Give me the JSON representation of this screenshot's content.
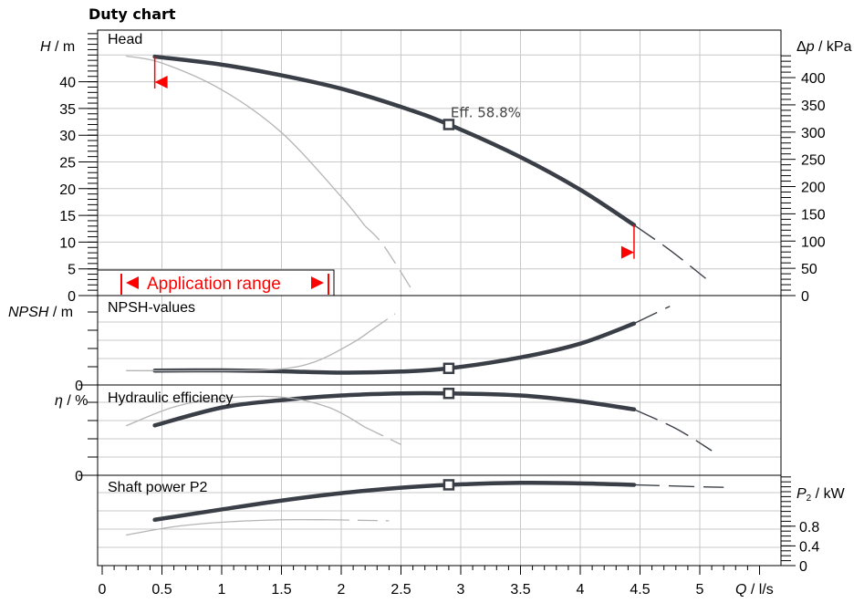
{
  "chart_data": {
    "type": "line",
    "title": "Duty chart",
    "x_axis": {
      "label_var": "Q",
      "label_unit": " / l/s",
      "range": [
        0,
        5.5
      ],
      "ticks": [
        "0",
        "0.5",
        "1",
        "1.5",
        "2",
        "2.5",
        "3",
        "3.5",
        "4",
        "4.5",
        "5"
      ]
    },
    "panels": [
      {
        "name": "Head",
        "left_axis": {
          "label_var": "H",
          "label_unit": " / m",
          "range": [
            0,
            47
          ],
          "ticks": [
            "0",
            "5",
            "10",
            "15",
            "20",
            "25",
            "30",
            "35",
            "40"
          ]
        },
        "right_axis": {
          "label_var": "Δp",
          "label_unit": " / kPa",
          "ticks": [
            "0",
            "50",
            "100",
            "150",
            "200",
            "250",
            "300",
            "350",
            "400"
          ]
        },
        "series": [
          {
            "style": "main",
            "x": [
              0.44,
              1.0,
              1.5,
              2.0,
              2.5,
              2.9,
              3.5,
              4.0,
              4.45
            ],
            "y": [
              44.7,
              43.2,
              41.2,
              38.7,
              35.3,
              32.0,
              25.9,
              19.8,
              13.2
            ]
          },
          {
            "style": "dashed",
            "x": [
              4.45,
              4.75,
              5.05
            ],
            "y": [
              13.2,
              8.5,
              3.2
            ]
          },
          {
            "style": "thin",
            "x": [
              0.2,
              0.5,
              1.0,
              1.5,
              2.0,
              2.2
            ],
            "y": [
              44.8,
              43.5,
              38.5,
              30.5,
              18.5,
              13.0
            ]
          },
          {
            "style": "dashed-thin",
            "x": [
              2.2,
              2.35,
              2.6
            ],
            "y": [
              13.0,
              9.5,
              0.8
            ]
          }
        ],
        "duty_point": {
          "x": 2.9,
          "y": 32.0,
          "label": "Eff. 58.8%"
        }
      },
      {
        "name": "NPSH-values",
        "left_axis": {
          "label_var": "NPSH",
          "label_unit": " / m",
          "ticks": [
            "0"
          ]
        },
        "series": [
          {
            "style": "main",
            "x": [
              0.44,
              1.0,
              1.5,
              2.0,
              2.5,
              2.9,
              3.5,
              4.0,
              4.45
            ],
            "y": [
              1.3,
              1.35,
              1.2,
              0.95,
              1.15,
              1.7,
              3.6,
              6.0,
              9.5
            ]
          },
          {
            "style": "dashed",
            "x": [
              4.45,
              4.75
            ],
            "y": [
              9.5,
              12.5
            ]
          },
          {
            "style": "thin",
            "x": [
              0.2,
              1.0,
              1.5,
              1.8,
              2.1,
              2.25
            ],
            "y": [
              1.3,
              1.3,
              1.6,
              3.0,
              6.2,
              8.3
            ]
          },
          {
            "style": "dashed-thin",
            "x": [
              2.25,
              2.45
            ],
            "y": [
              8.3,
              11.2
            ]
          }
        ],
        "duty_point": {
          "x": 2.9,
          "y": 1.7
        }
      },
      {
        "name": "Hydraulic efficiency",
        "left_axis": {
          "label_var": "η",
          "label_unit": " / %",
          "ticks": [
            "0"
          ]
        },
        "series": [
          {
            "style": "main",
            "x": [
              0.44,
              1.0,
              1.5,
              2.0,
              2.5,
              2.9,
              3.5,
              4.0,
              4.45
            ],
            "y": [
              40.5,
              55,
              61,
              64.8,
              66.5,
              66.5,
              64.8,
              60,
              53.5
            ]
          },
          {
            "style": "dashed",
            "x": [
              4.45,
              4.8,
              5.1
            ],
            "y": [
              53.5,
              38,
              20
            ]
          },
          {
            "style": "thin",
            "x": [
              0.2,
              0.6,
              1.0,
              1.5,
              1.9,
              2.2
            ],
            "y": [
              40.2,
              55.5,
              62.5,
              63.5,
              55,
              39
            ]
          },
          {
            "style": "dashed-thin",
            "x": [
              2.2,
              2.5
            ],
            "y": [
              39,
              25
            ]
          }
        ],
        "duty_point": {
          "x": 2.9,
          "y": 66.5
        }
      },
      {
        "name": "Shaft power P2",
        "right_axis": {
          "label_var": "P",
          "label_sub": "2",
          "label_unit": " / kW",
          "ticks": [
            "0",
            "0.4",
            "0.8"
          ]
        },
        "series": [
          {
            "style": "main",
            "x": [
              0.44,
              1.0,
              1.5,
              2.0,
              2.5,
              2.9,
              3.5,
              4.0,
              4.45
            ],
            "y": [
              0.93,
              1.14,
              1.32,
              1.47,
              1.58,
              1.64,
              1.68,
              1.67,
              1.64
            ]
          },
          {
            "style": "dashed",
            "x": [
              4.45,
              5.0,
              5.2
            ],
            "y": [
              1.64,
              1.6,
              1.59
            ]
          },
          {
            "style": "thin",
            "x": [
              0.2,
              0.6,
              1.0,
              1.5,
              1.9
            ],
            "y": [
              0.62,
              0.79,
              0.88,
              0.93,
              0.93
            ]
          },
          {
            "style": "dashed-thin",
            "x": [
              1.9,
              2.4
            ],
            "y": [
              0.93,
              0.91
            ]
          }
        ],
        "duty_point": {
          "x": 2.9,
          "y": 1.64
        }
      }
    ],
    "application_range": {
      "label": "Application range",
      "x_min": 0.44,
      "x_max": 4.45
    },
    "grid": true,
    "colors": {
      "main": "#3a3f47",
      "thin": "#b4b4b4",
      "grid": "#c8c8c8",
      "accent": "#ff0000"
    }
  }
}
